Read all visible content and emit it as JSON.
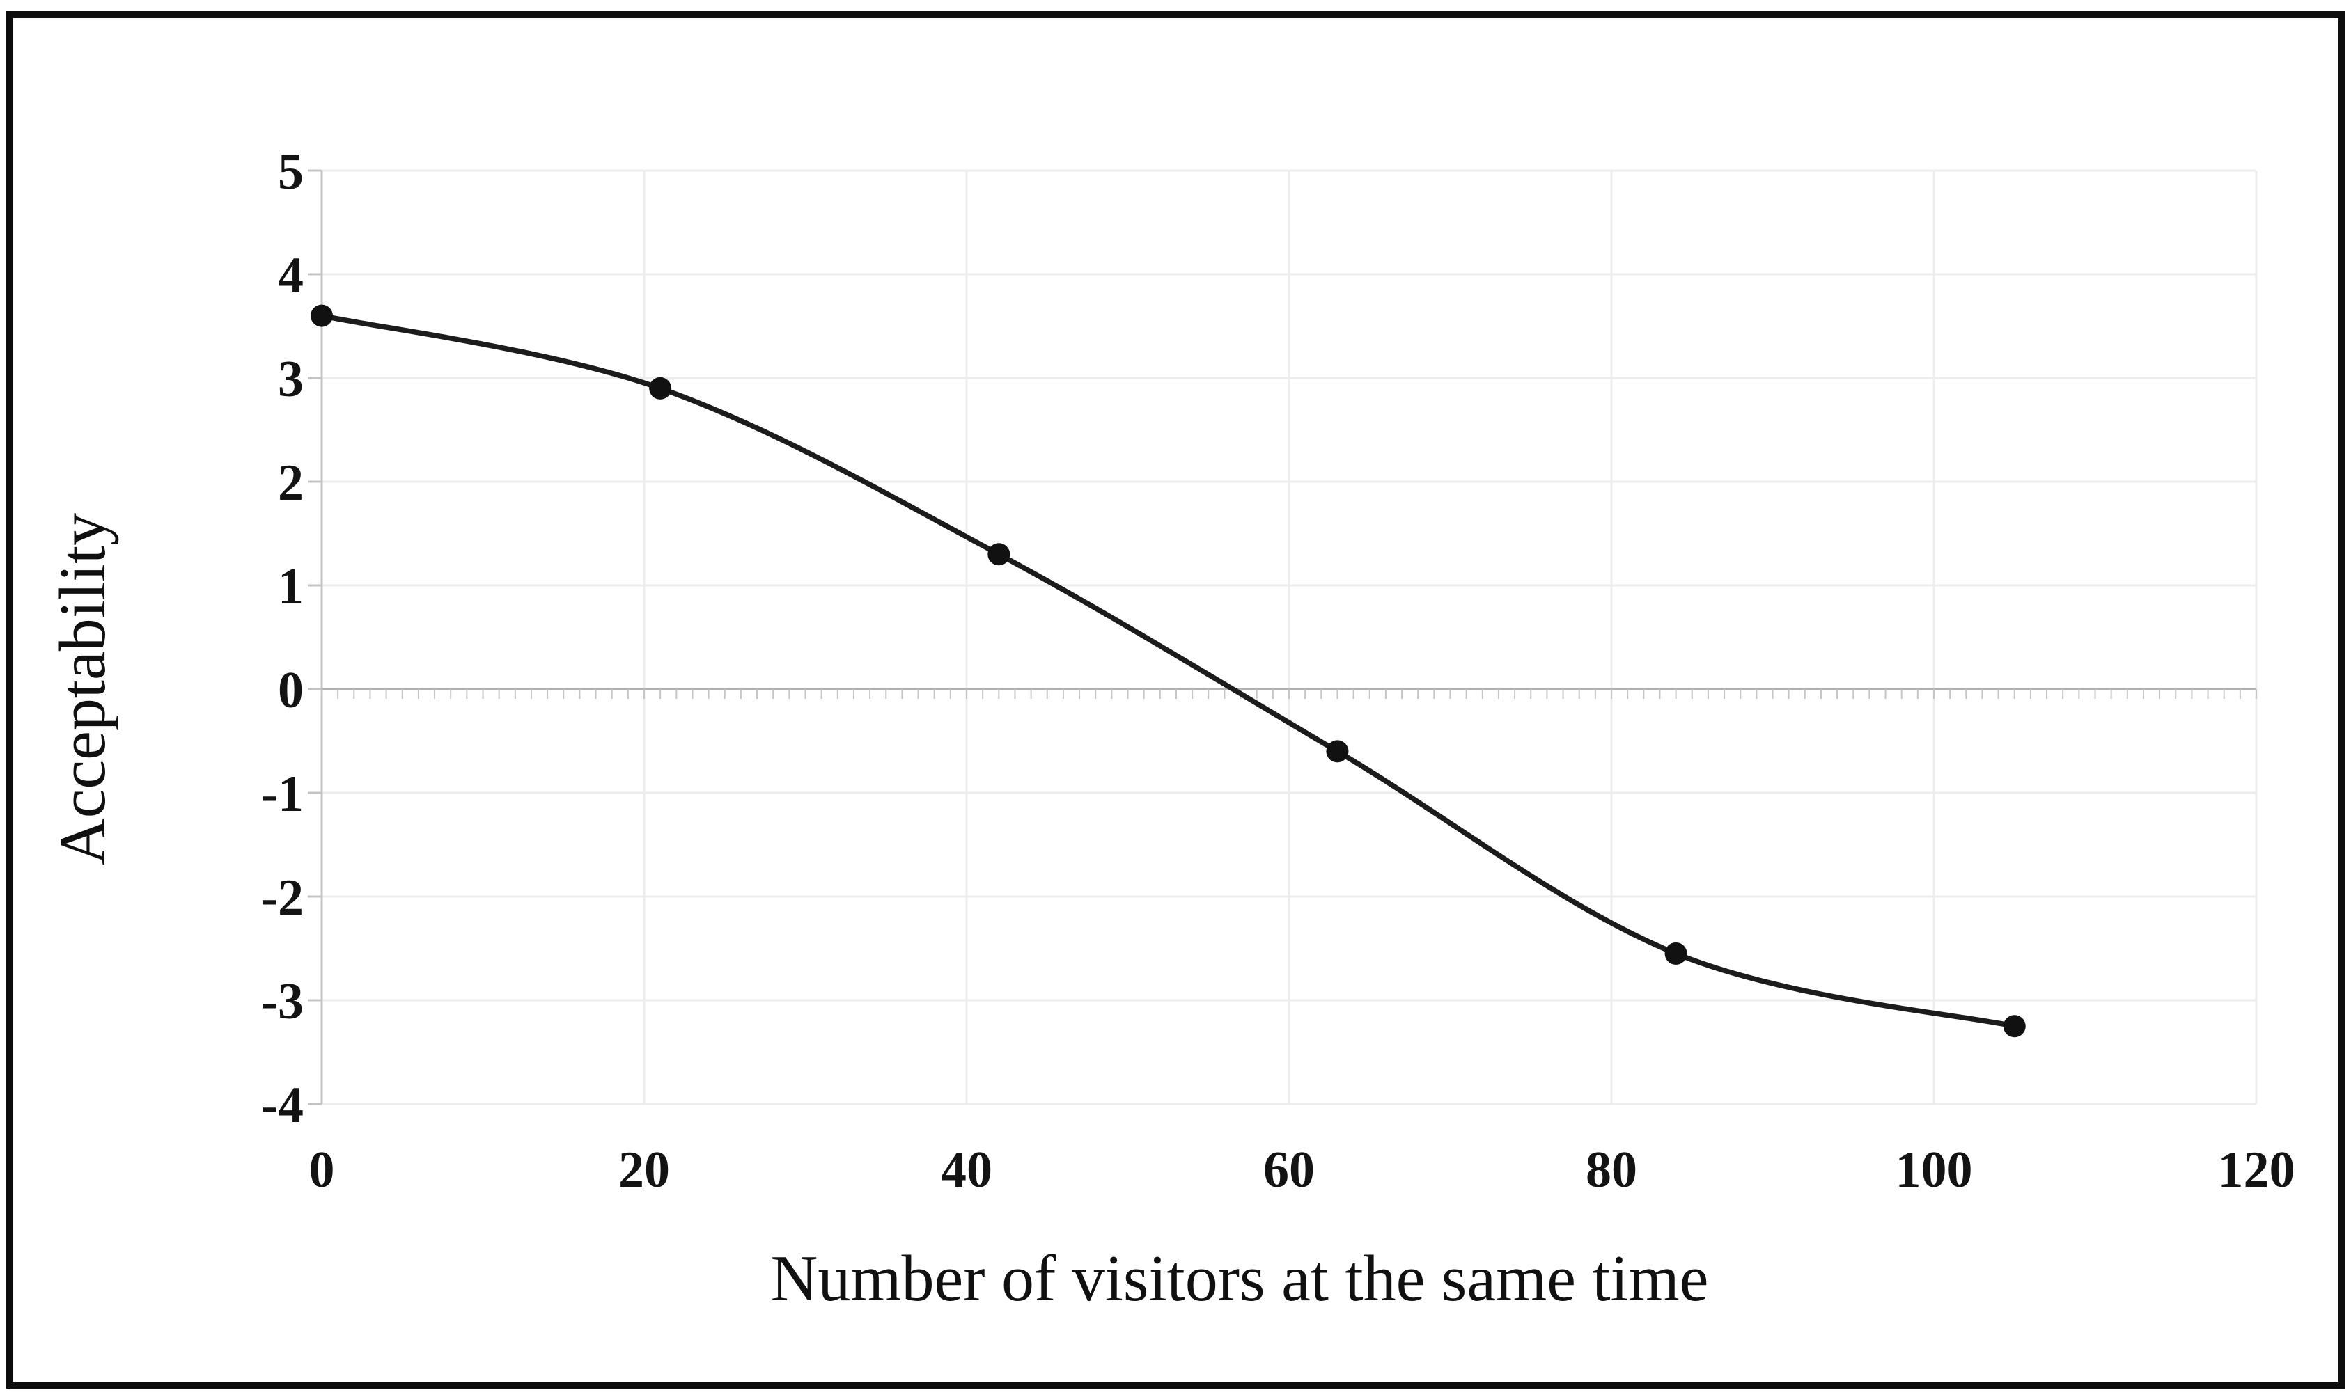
{
  "chart_data": {
    "type": "line",
    "title": "",
    "xlabel": "Number of visitors at the same time",
    "ylabel": "Acceptability",
    "x": [
      0,
      21,
      42,
      63,
      84,
      105
    ],
    "y": [
      3.6,
      2.9,
      1.3,
      -0.6,
      -2.55,
      -3.25
    ],
    "xlim": [
      0,
      120
    ],
    "ylim": [
      -4,
      5
    ],
    "xticks": [
      0,
      20,
      40,
      60,
      80,
      100,
      120
    ],
    "yticks": [
      5,
      4,
      3,
      2,
      1,
      0,
      -1,
      -2,
      -3,
      -4
    ],
    "grid": true,
    "smooth": true,
    "legend_position": "none",
    "zero_axis_minor_tick_step": 1,
    "colors": {
      "line": "#1c1c1c",
      "marker": "#111111",
      "grid": "#ededed",
      "axis": "#c4c4c4",
      "zero_line": "#b0b0b0",
      "minor_tick": "#c6c6c6",
      "text": "#131313",
      "frame": "#0d0d0d",
      "background": "#ffffff"
    }
  }
}
